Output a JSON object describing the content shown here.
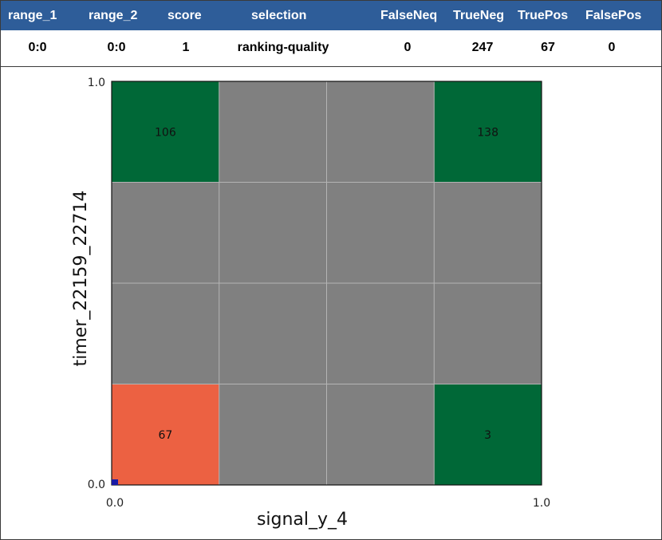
{
  "table": {
    "headers": [
      "range_1",
      "range_2",
      "score",
      "selection",
      "FalseNeq",
      "TrueNeg",
      "TruePos",
      "FalsePos"
    ],
    "row": [
      "0:0",
      "0:0",
      "1",
      "ranking-quality",
      "0",
      "247",
      "67",
      "0"
    ],
    "header_bg": "#2e5d99",
    "header_text_color": "#ffffff"
  },
  "chart_data": {
    "type": "heatmap",
    "xlabel": "signal_y_4",
    "ylabel": "timer_22159_22714",
    "xlim": [
      0.0,
      1.0
    ],
    "ylim": [
      0.0,
      1.0
    ],
    "x_ticks": [
      "0.0",
      "1.0"
    ],
    "y_ticks": [
      "0.0",
      "1.0"
    ],
    "grid": true,
    "n_cols": 4,
    "n_rows": 4,
    "cells": [
      {
        "col": 0,
        "row": 3,
        "value": 106,
        "color": "#006837"
      },
      {
        "col": 1,
        "row": 3,
        "value": null,
        "color": "#808080"
      },
      {
        "col": 2,
        "row": 3,
        "value": null,
        "color": "#808080"
      },
      {
        "col": 3,
        "row": 3,
        "value": 138,
        "color": "#006837"
      },
      {
        "col": 0,
        "row": 2,
        "value": null,
        "color": "#808080"
      },
      {
        "col": 1,
        "row": 2,
        "value": null,
        "color": "#808080"
      },
      {
        "col": 2,
        "row": 2,
        "value": null,
        "color": "#808080"
      },
      {
        "col": 3,
        "row": 2,
        "value": null,
        "color": "#808080"
      },
      {
        "col": 0,
        "row": 1,
        "value": null,
        "color": "#808080"
      },
      {
        "col": 1,
        "row": 1,
        "value": null,
        "color": "#808080"
      },
      {
        "col": 2,
        "row": 1,
        "value": null,
        "color": "#808080"
      },
      {
        "col": 3,
        "row": 1,
        "value": null,
        "color": "#808080"
      },
      {
        "col": 0,
        "row": 0,
        "value": 67,
        "color": "#ec6142"
      },
      {
        "col": 1,
        "row": 0,
        "value": null,
        "color": "#808080"
      },
      {
        "col": 2,
        "row": 0,
        "value": null,
        "color": "#808080"
      },
      {
        "col": 3,
        "row": 0,
        "value": 3,
        "color": "#006837"
      }
    ],
    "origin_marker_color": "#1a1aa6"
  }
}
